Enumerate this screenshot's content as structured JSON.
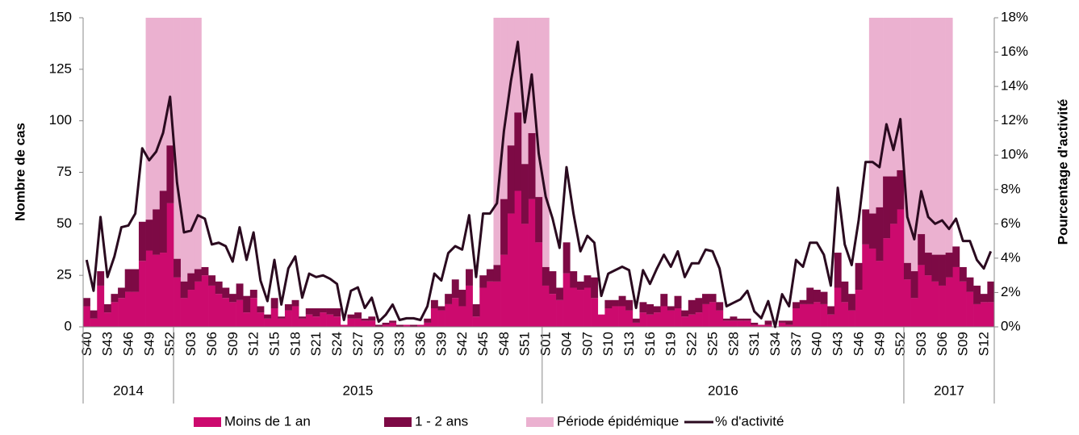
{
  "chart_data": {
    "type": "stacked-bar-line",
    "y_label": "Nombre de cas",
    "y2_label": "Pourcentage d'activité",
    "ylim": [
      0,
      150
    ],
    "yticks": [
      0,
      25,
      50,
      75,
      100,
      125,
      150
    ],
    "y2lim": [
      0,
      18
    ],
    "y2ticks": [
      {
        "value": 0,
        "label": "0%"
      },
      {
        "value": 2,
        "label": "2%"
      },
      {
        "value": 4,
        "label": "4%"
      },
      {
        "value": 6,
        "label": "6%"
      },
      {
        "value": 8,
        "label": "8%"
      },
      {
        "value": 10,
        "label": "10%"
      },
      {
        "value": 12,
        "label": "12%"
      },
      {
        "value": 14,
        "label": "14%"
      },
      {
        "value": 16,
        "label": "16%"
      },
      {
        "value": 18,
        "label": "18%"
      }
    ],
    "categories": [
      "S40",
      null,
      null,
      "S43",
      null,
      null,
      "S46",
      null,
      null,
      "S49",
      null,
      null,
      "S52",
      null,
      null,
      "S03",
      null,
      null,
      "S06",
      null,
      null,
      "S09",
      null,
      null,
      "S12",
      null,
      null,
      "S15",
      null,
      null,
      "S18",
      null,
      null,
      "S21",
      null,
      null,
      "S24",
      null,
      null,
      "S27",
      null,
      null,
      "S30",
      null,
      null,
      "S33",
      null,
      null,
      "S36",
      null,
      null,
      "S39",
      null,
      null,
      "S42",
      null,
      null,
      "S45",
      null,
      null,
      "S48",
      null,
      null,
      "S51",
      null,
      null,
      "S01",
      null,
      null,
      "S04",
      null,
      null,
      "S07",
      null,
      null,
      "S10",
      null,
      null,
      "S13",
      null,
      null,
      "S16",
      null,
      null,
      "S19",
      null,
      null,
      "S22",
      null,
      null,
      "S25",
      null,
      null,
      "S28",
      null,
      null,
      "S31",
      null,
      null,
      "S34",
      null,
      null,
      "S37",
      null,
      null,
      "S40",
      null,
      null,
      "S43",
      null,
      null,
      "S46",
      null,
      null,
      "S49",
      null,
      null,
      "S52",
      null,
      null,
      "S03",
      null,
      null,
      "S06",
      null,
      null,
      "S09",
      null,
      null,
      "S12",
      null
    ],
    "groups": [
      {
        "label": "2014",
        "count": 13
      },
      {
        "label": "2015",
        "count": 53
      },
      {
        "label": "2016",
        "count": 52
      },
      {
        "label": "2017",
        "count": 13
      }
    ],
    "series": [
      {
        "name": "Moins de 1 an",
        "kind": "bar",
        "color": "#cc0a6e",
        "values": [
          10,
          4,
          20,
          7,
          12,
          14,
          17,
          17,
          32,
          37,
          35,
          36,
          60,
          24,
          14,
          18,
          22,
          25,
          20,
          16,
          14,
          12,
          13,
          7,
          14,
          7,
          4,
          9,
          4,
          8,
          10,
          4,
          6,
          5,
          7,
          6,
          5,
          1,
          4,
          4,
          3,
          3,
          0,
          1,
          2,
          0,
          1,
          0,
          1,
          2,
          9,
          8,
          11,
          14,
          10,
          20,
          5,
          19,
          22,
          22,
          35,
          55,
          66,
          50,
          62,
          41,
          20,
          16,
          13,
          26,
          19,
          18,
          19,
          14,
          6,
          9,
          10,
          10,
          8,
          2,
          7,
          6,
          7,
          10,
          8,
          9,
          5,
          6,
          7,
          11,
          12,
          8,
          3,
          3,
          3,
          3,
          1,
          1,
          1,
          0,
          2,
          1,
          9,
          11,
          11,
          12,
          11,
          6,
          19,
          12,
          8,
          18,
          40,
          38,
          32,
          43,
          50,
          57,
          23,
          14,
          30,
          25,
          22,
          20,
          24,
          29,
          22,
          17,
          11,
          12,
          12
        ]
      },
      {
        "name": "1 - 2 ans",
        "kind": "bar",
        "color": "#7d0a45",
        "values": [
          4,
          4,
          7,
          4,
          4,
          5,
          11,
          11,
          19,
          15,
          22,
          30,
          28,
          9,
          8,
          8,
          6,
          4,
          5,
          6,
          5,
          4,
          8,
          8,
          4,
          3,
          2,
          5,
          1,
          3,
          3,
          1,
          3,
          4,
          2,
          3,
          4,
          0,
          2,
          3,
          1,
          2,
          1,
          1,
          1,
          1,
          0,
          1,
          0,
          2,
          4,
          2,
          5,
          9,
          8,
          8,
          6,
          6,
          6,
          8,
          27,
          33,
          38,
          29,
          32,
          22,
          9,
          11,
          6,
          15,
          8,
          4,
          6,
          10,
          0,
          4,
          3,
          5,
          5,
          2,
          5,
          5,
          3,
          6,
          2,
          6,
          3,
          7,
          7,
          5,
          4,
          4,
          1,
          2,
          1,
          1,
          1,
          0,
          2,
          0,
          1,
          2,
          3,
          2,
          8,
          6,
          6,
          4,
          17,
          10,
          8,
          13,
          17,
          17,
          26,
          30,
          23,
          19,
          8,
          13,
          15,
          11,
          13,
          15,
          12,
          10,
          7,
          7,
          9,
          4,
          10
        ]
      },
      {
        "name": "Période épidémique",
        "kind": "band",
        "color": "#ebb1d0",
        "values": [
          0,
          0,
          0,
          0,
          0,
          0,
          0,
          0,
          0,
          150,
          150,
          150,
          150,
          150,
          150,
          150,
          150,
          0,
          0,
          0,
          0,
          0,
          0,
          0,
          0,
          0,
          0,
          0,
          0,
          0,
          0,
          0,
          0,
          0,
          0,
          0,
          0,
          0,
          0,
          0,
          0,
          0,
          0,
          0,
          0,
          0,
          0,
          0,
          0,
          0,
          0,
          0,
          0,
          0,
          0,
          0,
          0,
          0,
          0,
          150,
          150,
          150,
          150,
          150,
          150,
          150,
          150,
          0,
          0,
          0,
          0,
          0,
          0,
          0,
          0,
          0,
          0,
          0,
          0,
          0,
          0,
          0,
          0,
          0,
          0,
          0,
          0,
          0,
          0,
          0,
          0,
          0,
          0,
          0,
          0,
          0,
          0,
          0,
          0,
          0,
          0,
          0,
          0,
          0,
          0,
          0,
          0,
          0,
          0,
          0,
          0,
          0,
          0,
          150,
          150,
          150,
          150,
          150,
          150,
          150,
          150,
          150,
          150,
          150,
          150,
          0,
          0,
          0,
          0,
          0,
          0
        ]
      },
      {
        "name": "% d'activité",
        "kind": "line",
        "axis": "y2",
        "color": "#2a0a1f",
        "values": [
          3.9,
          2.1,
          6.4,
          2.9,
          4.1,
          5.8,
          5.9,
          6.6,
          10.4,
          9.7,
          10.2,
          11.3,
          13.4,
          8.4,
          5.5,
          5.6,
          6.5,
          6.3,
          4.8,
          4.9,
          4.7,
          3.8,
          5.8,
          3.9,
          5.5,
          2.7,
          1.5,
          3.9,
          1.3,
          3.4,
          4.1,
          1.7,
          3.1,
          2.9,
          3.0,
          2.8,
          2.5,
          0.4,
          2.1,
          2.3,
          1.1,
          1.7,
          0.3,
          0.7,
          1.3,
          0.4,
          0.5,
          0.5,
          0.4,
          1.2,
          3.1,
          2.7,
          4.3,
          4.7,
          4.5,
          6.5,
          2.9,
          6.6,
          6.6,
          7.2,
          11.4,
          14.3,
          16.6,
          11.9,
          14.7,
          10.1,
          7.6,
          6.3,
          4.6,
          9.3,
          6.6,
          4.4,
          5.3,
          4.9,
          1.8,
          3.1,
          3.3,
          3.5,
          3.3,
          1.1,
          3.3,
          2.5,
          3.4,
          4.2,
          3.5,
          4.4,
          2.9,
          3.7,
          3.7,
          4.5,
          4.4,
          3.4,
          1.2,
          1.4,
          1.6,
          2.1,
          0.9,
          0.5,
          1.5,
          0.0,
          1.9,
          1.2,
          3.9,
          3.5,
          4.9,
          4.9,
          4.2,
          2.4,
          8.1,
          4.8,
          3.6,
          6.2,
          9.6,
          9.6,
          9.3,
          11.8,
          10.3,
          12.1,
          6.4,
          5.1,
          7.9,
          6.4,
          6.0,
          6.2,
          5.7,
          6.3,
          5.0,
          5.0,
          3.9,
          3.4,
          4.4
        ]
      }
    ]
  }
}
